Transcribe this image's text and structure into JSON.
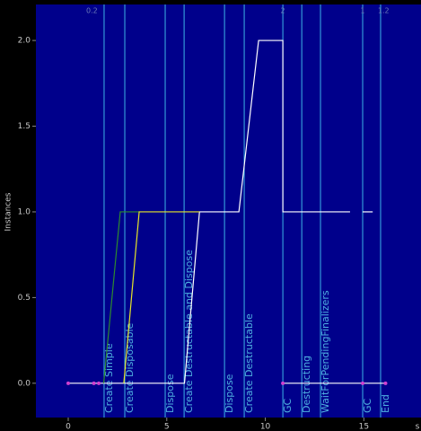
{
  "chart_data": {
    "type": "line",
    "ylabel": "Instances",
    "xlabel": "s",
    "xlim": [
      -1.64,
      17.9
    ],
    "ylim": [
      -0.2,
      2.21
    ],
    "xticks": [
      0,
      5,
      10,
      15
    ],
    "yticks": [
      {
        "value": 0,
        "label": "0.0"
      },
      {
        "value": 0.5,
        "label": "0.5"
      },
      {
        "value": 1,
        "label": "1.0"
      },
      {
        "value": 1.5,
        "label": "1.5"
      },
      {
        "value": 2,
        "label": "2.0"
      }
    ],
    "background": "#00008b",
    "events": [
      {
        "x": 1.82,
        "label": "Create Simple"
      },
      {
        "x": 2.87,
        "label": "Create Disposable"
      },
      {
        "x": 4.92,
        "label": "Dispose"
      },
      {
        "x": 5.88,
        "label": "Create Destructable and Dispose"
      },
      {
        "x": 7.93,
        "label": "Dispose"
      },
      {
        "x": 8.93,
        "label": "Create Destructable"
      },
      {
        "x": 10.89,
        "label": "GC"
      },
      {
        "x": 11.85,
        "label": "Destructing"
      },
      {
        "x": 12.8,
        "label": "WaitForPendingFinalizers"
      },
      {
        "x": 14.94,
        "label": "GC"
      },
      {
        "x": 15.85,
        "label": "End"
      }
    ],
    "event_color": "#3cb4e6",
    "annotations": [
      {
        "x": 1.2,
        "text": "0.2"
      },
      {
        "x": 10.89,
        "text": "2"
      },
      {
        "x": 14.94,
        "text": "1"
      },
      {
        "x": 16.0,
        "text": "1.2"
      }
    ],
    "series": [
      {
        "color": "#ffffff",
        "x": [
          0,
          5.9,
          6.66,
          8.66,
          9.66,
          10.89,
          10.89,
          14.3
        ],
        "values": [
          0,
          0,
          1,
          1,
          2,
          2,
          1,
          1
        ]
      },
      {
        "color": "#ffffff",
        "x": [
          10.89,
          16.1
        ],
        "values": [
          0,
          0
        ]
      },
      {
        "color": "#ffffff",
        "x": [
          14.94,
          15.45
        ],
        "values": [
          1,
          1
        ]
      },
      {
        "color": "#2e8b2e",
        "x": [
          1.8,
          2.64,
          3.6
        ],
        "values": [
          0,
          1,
          1
        ]
      },
      {
        "color": "#e6e628",
        "x": [
          2.82,
          3.6,
          6.66
        ],
        "values": [
          0,
          1,
          1
        ]
      }
    ],
    "points": {
      "color": "#d040d0",
      "x": [
        0,
        1.3,
        1.55,
        10.89,
        14.94,
        16.1
      ],
      "values": [
        0,
        0,
        0,
        0,
        0,
        0
      ]
    }
  }
}
